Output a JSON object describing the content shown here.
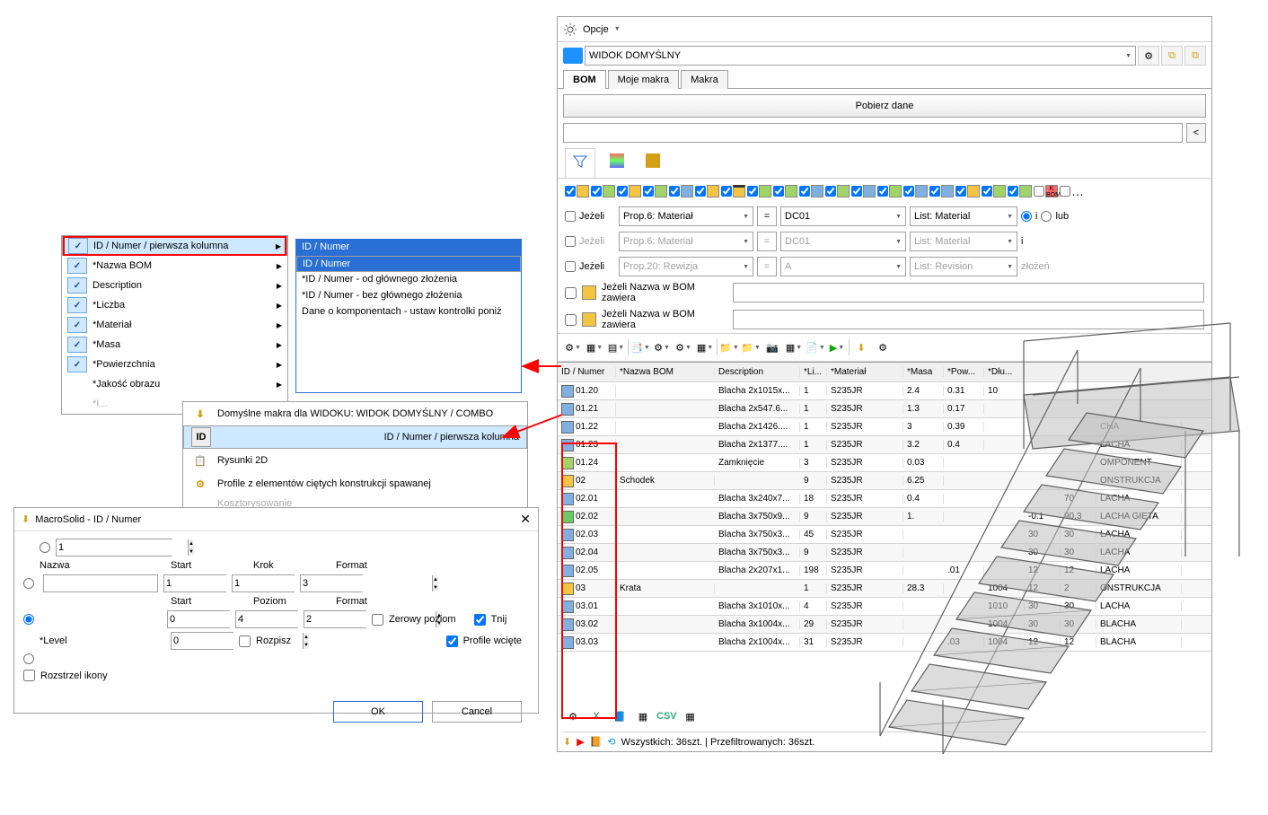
{
  "topbar": {
    "opcje": "Opcje"
  },
  "view": {
    "name": "WIDOK DOMYŚLNY"
  },
  "tabs": {
    "bom": "BOM",
    "moje": "Moje makra",
    "makra": "Makra"
  },
  "bigbtn": "Pobierz dane",
  "filters": {
    "jezeli": "Jeżeli",
    "f1": {
      "prop": "Prop.6: Materiał",
      "op": "=",
      "val": "DC01",
      "list": "List: Material"
    },
    "f2": {
      "prop": "Prop.6: Materiał",
      "op": "=",
      "val": "DC01",
      "list": "List: Material"
    },
    "f3": {
      "prop": "Prop.20: Rewizja",
      "op": "=",
      "val": "A",
      "list": "List: Revision"
    },
    "radio_i": "i",
    "radio_lub": "lub",
    "radio_i2": "i",
    "name1": "Jeżeli Nazwa w BOM zawiera",
    "name2": "Jeżeli Nazwa w BOM zawiera",
    "zlozen": "złożeń"
  },
  "grid": {
    "cols": [
      "ID / Numer",
      "*Nazwa BOM",
      "Description",
      "*Li...",
      "*Materiał",
      "*Masa",
      "*Pow...",
      "*Dłu...",
      "",
      "",
      ""
    ],
    "cols_extra": [
      "CHA",
      "OMPONENT",
      "ONSTRUKCJA",
      "LACHA",
      "LACHA GIĘTA",
      "LACHA",
      "LACHA",
      "LACHA",
      "ONSTRUKCJA",
      "LACHA",
      "BLACHA",
      "BLACHA"
    ],
    "rows": [
      {
        "id": "01.20",
        "nazwa": "",
        "desc": "Blacha 2x1015x...",
        "li": "1",
        "mat": "S235JR",
        "masa": "2.4",
        "pow": "0.31",
        "dlu": "10",
        "a": "",
        "b": "",
        "t": ""
      },
      {
        "id": "01.21",
        "nazwa": "",
        "desc": "Blacha 2x547.6...",
        "li": "1",
        "mat": "S235JR",
        "masa": "1.3",
        "pow": "0.17",
        "dlu": "",
        "a": "",
        "b": "",
        "t": ""
      },
      {
        "id": "01.22",
        "nazwa": "",
        "desc": "Blacha 2x1426....",
        "li": "1",
        "mat": "S235JR",
        "masa": "3",
        "pow": "0.39",
        "dlu": "",
        "a": "",
        "b": "",
        "t": "CHA"
      },
      {
        "id": "01.23",
        "nazwa": "",
        "desc": "Blacha 2x1377....",
        "li": "1",
        "mat": "S235JR",
        "masa": "3.2",
        "pow": "0.4",
        "dlu": "",
        "a": "",
        "b": "",
        "t": "LACHA"
      },
      {
        "id": "01.24",
        "nazwa": "",
        "desc": "Zamknięcie",
        "li": "3",
        "mat": "S235JR",
        "masa": "0.03",
        "pow": "",
        "dlu": "",
        "a": "",
        "b": "",
        "t": "OMPONENT"
      },
      {
        "id": "02",
        "nazwa": "Schodek",
        "desc": "",
        "li": "9",
        "mat": "S235JR",
        "masa": "6.25",
        "pow": "",
        "dlu": "",
        "a": "",
        "b": "",
        "t": "ONSTRUKCJA"
      },
      {
        "id": "02.01",
        "nazwa": "",
        "desc": "Blacha 3x240x7...",
        "li": "18",
        "mat": "S235JR",
        "masa": "0.4",
        "pow": "",
        "dlu": "",
        "a": "",
        "b": "70",
        "t": "LACHA"
      },
      {
        "id": "02.02",
        "nazwa": "",
        "desc": "Blacha 3x750x9...",
        "li": "9",
        "mat": "S235JR",
        "masa": "1.",
        "pow": "",
        "dlu": "",
        "a": "-0.1",
        "b": "90.3",
        "t": "LACHA GIĘTA"
      },
      {
        "id": "02.03",
        "nazwa": "",
        "desc": "Blacha 3x750x3...",
        "li": "45",
        "mat": "S235JR",
        "masa": "",
        "pow": "",
        "dlu": "",
        "a": "30",
        "b": "30",
        "t": "LACHA"
      },
      {
        "id": "02.04",
        "nazwa": "",
        "desc": "Blacha 3x750x3...",
        "li": "9",
        "mat": "S235JR",
        "masa": "",
        "pow": "",
        "dlu": "",
        "a": "30",
        "b": "30",
        "t": "LACHA"
      },
      {
        "id": "02.05",
        "nazwa": "",
        "desc": "Blacha 2x207x1...",
        "li": "198",
        "mat": "S235JR",
        "masa": "",
        "pow": ".01",
        "dlu": "",
        "a": "12",
        "b": "12",
        "t": "LACHA"
      },
      {
        "id": "03",
        "nazwa": "Krata",
        "desc": "",
        "li": "1",
        "mat": "S235JR",
        "masa": "28.3",
        "pow": "",
        "dlu": "1004",
        "a": "12",
        "b": "2",
        "t": "ONSTRUKCJA"
      },
      {
        "id": "03.01",
        "nazwa": "",
        "desc": "Blacha 3x1010x...",
        "li": "4",
        "mat": "S235JR",
        "masa": "",
        "pow": "",
        "dlu": "1010",
        "a": "30",
        "b": "30",
        "t": "LACHA"
      },
      {
        "id": "03.02",
        "nazwa": "",
        "desc": "Blacha 3x1004x...",
        "li": "29",
        "mat": "S235JR",
        "masa": "",
        "pow": "",
        "dlu": "1004",
        "a": "30",
        "b": "30",
        "t": "BLACHA"
      },
      {
        "id": "03.03",
        "nazwa": "",
        "desc": "Blacha 2x1004x...",
        "li": "31",
        "mat": "S235JR",
        "masa": "",
        "pow": ".03",
        "dlu": "1004",
        "a": "12",
        "b": "12",
        "t": "BLACHA"
      }
    ]
  },
  "bottombar_export": "CSV",
  "status": "Wszystkich: 36szt. | Przefiltrowanych: 36szt.",
  "left_menu": {
    "items": [
      "ID / Numer / pierwsza kolumna",
      "*Nazwa BOM",
      "Description",
      "*Liczba",
      "*Materiał",
      "*Masa",
      "*Powierzchnia",
      "*Jakość obrazu"
    ]
  },
  "submenu": {
    "header": "ID / Numer",
    "items": [
      "ID / Numer",
      "*ID / Numer - od głównego złożenia",
      "*ID / Numer - bez głównego złożenia",
      "Dane o komponentach - ustaw kontrolki poniż"
    ]
  },
  "macros_panel": {
    "title": "Domyślne makra dla WIDOKU: WIDOK DOMYŚLNY / COMBO",
    "items": [
      "ID / Numer / pierwsza kolumna",
      "Rysunki 2D",
      "Profile z elementów ciętych konstrukcji spawanej",
      "Kosztorysowanie"
    ],
    "id_label": "ID"
  },
  "dialog": {
    "title": "MacroSolid - ID / Numer",
    "close": "✕",
    "row1_val": "1",
    "labels": {
      "nazwa": "Nazwa",
      "start": "Start",
      "krok": "Krok",
      "format": "Format",
      "poziom": "Poziom",
      "level": "*Level"
    },
    "row2": {
      "start": "1",
      "krok": "1",
      "format": "3"
    },
    "row3": {
      "start": "0",
      "poziom": "4",
      "format": "2"
    },
    "level_val": "0",
    "chk_zerowy": "Zerowy poziom",
    "chk_rozpisz": "Rozpisz",
    "chk_tnij": "Tnij",
    "chk_profile": "Profile wcięte",
    "chk_rozstrzel": "Rozstrzel ikony",
    "btn_ok": "OK",
    "btn_cancel": "Cancel"
  },
  "colors": {
    "highlight": "#cde8ff",
    "selection": "#2a6fd6",
    "red": "#ff0000",
    "swatches": [
      "#f4c542",
      "#a0d468",
      "#f4c542",
      "#a0d468",
      "#7fb0e0",
      "#f4c542",
      "#a0d468",
      "#7fb0e0",
      "#f4c542",
      "#a0d468",
      "#7fb0e0",
      "#f4c542",
      "#a0d468",
      "#7fb0e0",
      "#f4c542",
      "#a0d468",
      "#7fb0e0",
      "#f4c542",
      "#a0d468",
      "#7fb0e0"
    ]
  }
}
